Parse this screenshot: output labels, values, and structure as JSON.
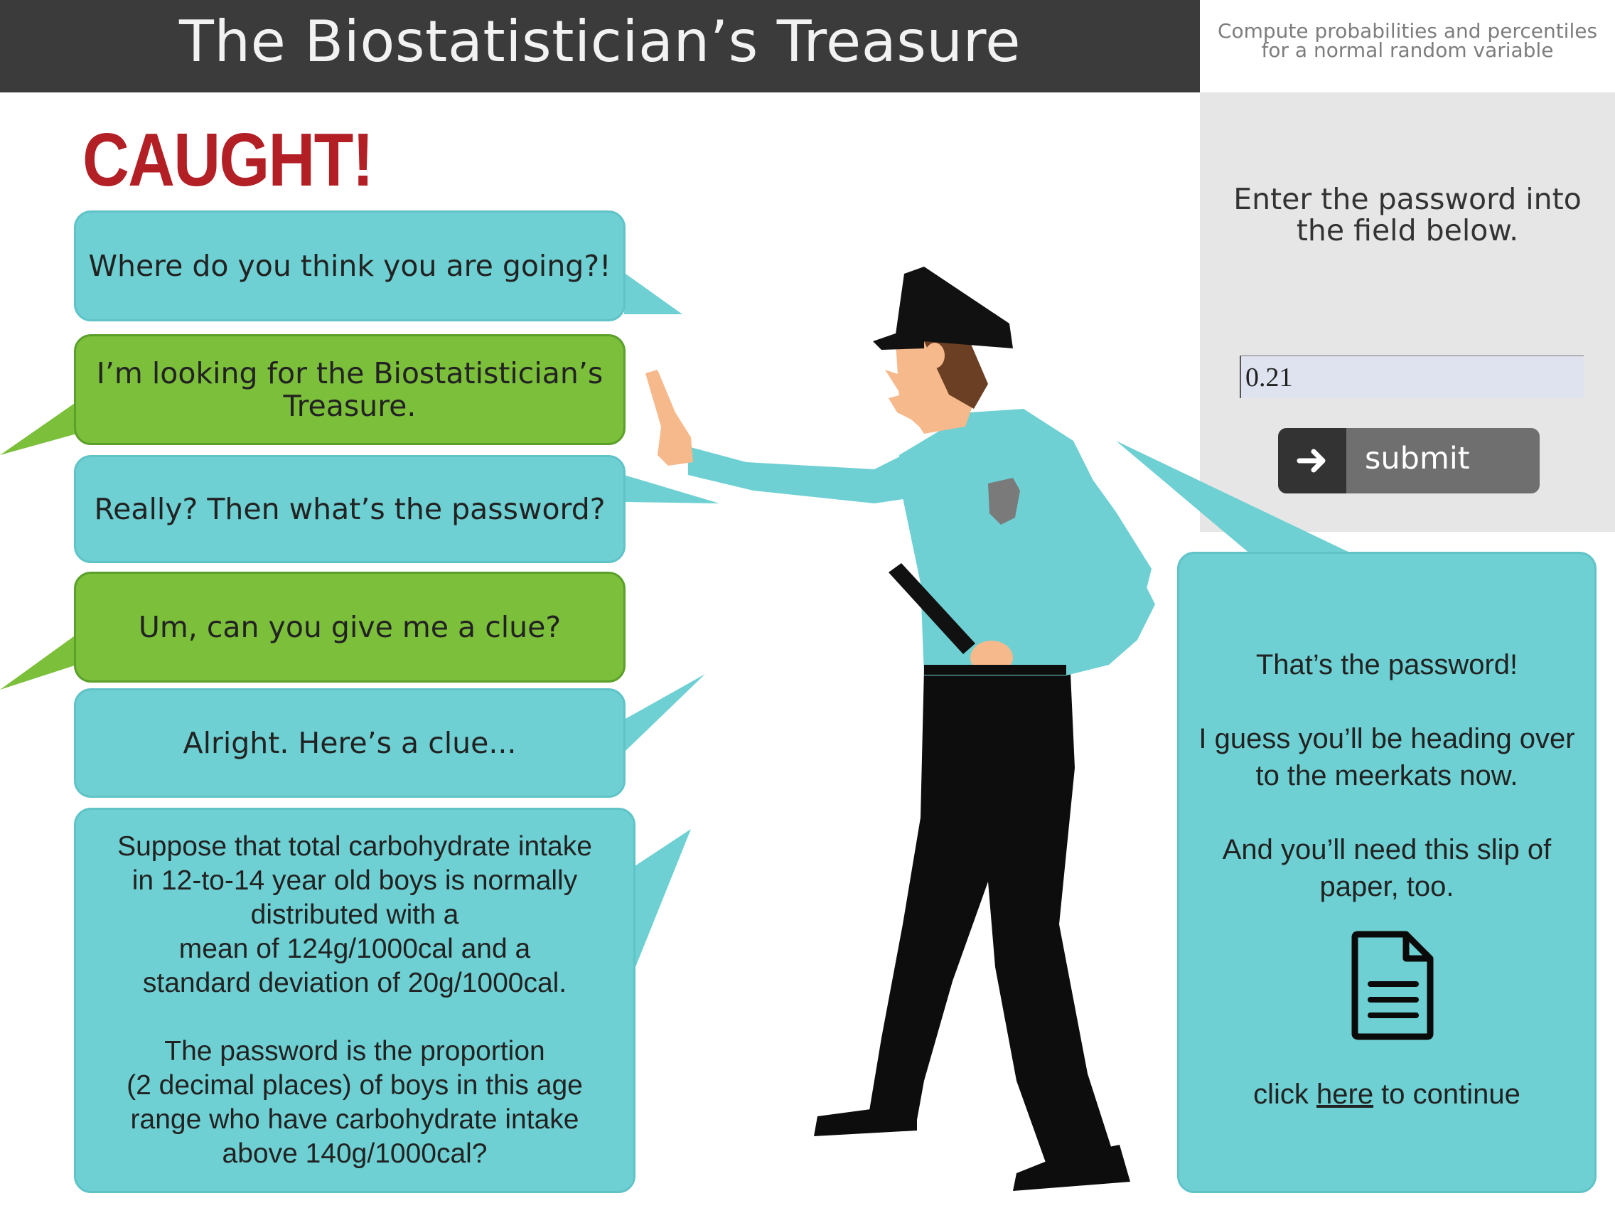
{
  "header": {
    "title": "The Biostatistician’s Treasure",
    "subtitle_line1": "Compute probabilities and percentiles",
    "subtitle_line2": "for a normal random variable"
  },
  "heading": "CAUGHT!",
  "dialogue": [
    {
      "speaker": "officer",
      "text": "Where do you think you are going?!"
    },
    {
      "speaker": "visitor",
      "line1": "I’m looking for the Biostatistician’s",
      "line2": "Treasure."
    },
    {
      "speaker": "officer",
      "text": "Really? Then what’s the password?"
    },
    {
      "speaker": "visitor",
      "text": "Um, can you give me a clue?"
    },
    {
      "speaker": "officer",
      "text": "Alright. Here’s a clue..."
    }
  ],
  "clue": {
    "p1": [
      "Suppose that total carbohydrate intake",
      "in 12-to-14 year old boys is normally",
      "distributed with a",
      "mean of 124g/1000cal and a",
      "standard deviation of 20g/1000cal."
    ],
    "p2": [
      "The password is the proportion",
      "(2 decimal places) of boys in this age",
      "range who have carbohydrate intake",
      "above 140g/1000cal?"
    ]
  },
  "panel": {
    "prompt_line1": "Enter the password into",
    "prompt_line2": "the field below.",
    "input_value": "0.21",
    "submit_label": "submit",
    "submit_icon": "arrow-right-icon"
  },
  "response": {
    "line1": "That’s the password!",
    "line2": "I guess you’ll be heading over",
    "line3": "to the meerkats now.",
    "line4": "And you’ll need this slip of",
    "line5": "paper, too.",
    "icon": "document-icon",
    "continue_pre": "click ",
    "continue_link": "here",
    "continue_post": " to continue"
  },
  "colors": {
    "officer_bubble": "#6ed0d3",
    "visitor_bubble": "#7cbf3b",
    "heading_red": "#b21f24",
    "title_bar": "#3b3b3b"
  }
}
